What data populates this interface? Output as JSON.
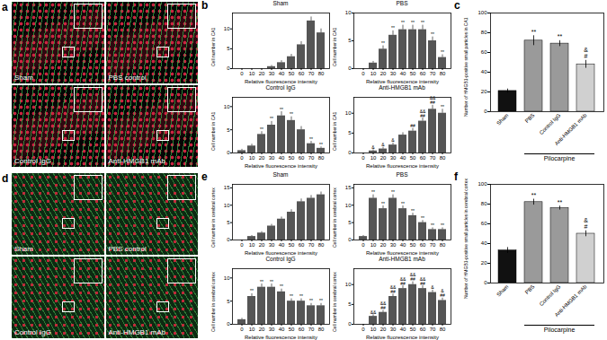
{
  "images": [
    {
      "panel": "a",
      "tiles": [
        "Sham",
        "PBS control",
        "Control IgG",
        "Anti-HMGB1 mAb"
      ]
    },
    {
      "panel": "d",
      "tiles": [
        "Sham",
        "PBS control",
        "Control IgG",
        "Anti-HMGB1 mAb"
      ]
    }
  ],
  "chart_data": [
    {
      "panel": "b",
      "type": "bar",
      "title": "Sham",
      "categories": [
        0,
        10,
        20,
        30,
        40,
        50,
        60,
        70,
        80
      ],
      "values": [
        0,
        0,
        0,
        0.5,
        1.5,
        3,
        6,
        12,
        9
      ],
      "errors": [
        0,
        0,
        0,
        0.3,
        0.5,
        0.6,
        0.8,
        1,
        1
      ],
      "annotations": [
        "",
        "",
        "",
        "",
        "",
        "",
        "",
        "",
        ""
      ],
      "xlabel": "Relative fluorescence intensity",
      "ylabel": "Cell number in CA1",
      "ylim": [
        0,
        14
      ],
      "yticks": [
        0,
        5,
        10
      ],
      "color": "#555555"
    },
    {
      "panel": "b",
      "type": "bar",
      "title": "PBS",
      "categories": [
        0,
        10,
        20,
        30,
        40,
        50,
        60,
        70,
        80
      ],
      "values": [
        0,
        1,
        3.5,
        6,
        7,
        7,
        7,
        5,
        2
      ],
      "errors": [
        0,
        0.3,
        0.6,
        0.8,
        0.8,
        0.8,
        0.8,
        0.7,
        0.5
      ],
      "annotations": [
        "",
        "",
        "**",
        "**",
        "**",
        "**",
        "**",
        "**",
        "**"
      ],
      "xlabel": "Relative fluorescence intensity",
      "ylabel": "Cell number in CA1",
      "ylim": [
        0,
        10
      ],
      "yticks": [
        0,
        5,
        10
      ],
      "color": "#555555"
    },
    {
      "panel": "b",
      "type": "bar",
      "title": "Control IgG",
      "categories": [
        0,
        10,
        20,
        30,
        40,
        50,
        60,
        70,
        80
      ],
      "values": [
        0.5,
        1.5,
        4,
        6,
        8,
        7,
        5,
        2,
        1
      ],
      "errors": [
        0.3,
        0.4,
        0.6,
        0.8,
        0.9,
        0.8,
        0.7,
        0.5,
        0.3
      ],
      "annotations": [
        "",
        "",
        "**",
        "**",
        "**",
        "**",
        "",
        "**",
        "**"
      ],
      "xlabel": "Relative fluorescence intensity",
      "ylabel": "Cell number in CA1",
      "ylim": [
        0,
        12
      ],
      "yticks": [
        0,
        5,
        10
      ],
      "color": "#555555"
    },
    {
      "panel": "b",
      "type": "bar",
      "title": "Anti-HMGB1 mAb",
      "categories": [
        0,
        10,
        20,
        30,
        40,
        50,
        60,
        70,
        80
      ],
      "values": [
        0,
        0.5,
        1,
        2,
        4.5,
        5.5,
        8,
        11,
        10
      ],
      "errors": [
        0,
        0.3,
        0.4,
        0.5,
        0.6,
        0.7,
        0.8,
        1,
        1
      ],
      "annotations": [
        "",
        "&",
        "&",
        "&",
        "",
        "##",
        "&&\n##",
        "&&\n##",
        "**"
      ],
      "xlabel": "Relative fluorescence intensity",
      "ylabel": "Cell number in CA1",
      "ylim": [
        0,
        14
      ],
      "yticks": [
        0,
        5,
        10
      ],
      "color": "#555555"
    },
    {
      "panel": "c",
      "type": "bar",
      "categories": [
        "Sham",
        "PBS",
        "Control IgG",
        "Anti-HMGB1 mAb"
      ],
      "values": [
        21,
        72,
        69,
        48
      ],
      "errors": [
        2,
        5,
        3,
        4
      ],
      "annotations": [
        "",
        "**",
        "**",
        "&\n#"
      ],
      "colors": [
        "#111111",
        "#9a9a9a",
        "#9a9a9a",
        "#d0d0d0"
      ],
      "ylabel": "Number of HMGB1-positive small particles in CA1",
      "ylim": [
        0,
        100
      ],
      "yticks": [
        0,
        20,
        40,
        60,
        80,
        100
      ],
      "group": {
        "label": "Pilocarpine",
        "categories": [
          "PBS",
          "Control IgG",
          "Anti-HMGB1 mAb"
        ]
      }
    },
    {
      "panel": "e",
      "type": "bar",
      "title": "Sham",
      "categories": [
        0,
        10,
        20,
        30,
        40,
        50,
        60,
        70,
        80
      ],
      "values": [
        0,
        1,
        2,
        4,
        6,
        8,
        11,
        12,
        13
      ],
      "errors": [
        0,
        0.3,
        0.4,
        0.5,
        0.6,
        0.7,
        0.8,
        0.8,
        0.8
      ],
      "annotations": [
        "",
        "",
        "",
        "",
        "",
        "",
        "",
        "",
        ""
      ],
      "xlabel": "Relative fluorescence intensity",
      "ylabel": "Cell number in cerebral cortex",
      "ylim": [
        0,
        16
      ],
      "yticks": [
        0,
        5,
        10,
        15
      ],
      "color": "#555555"
    },
    {
      "panel": "e",
      "type": "bar",
      "title": "PBS",
      "categories": [
        0,
        10,
        20,
        30,
        40,
        50,
        60,
        70,
        80
      ],
      "values": [
        1,
        12,
        9,
        12,
        9,
        7,
        5,
        3,
        3
      ],
      "errors": [
        0.3,
        1,
        0.8,
        1,
        0.8,
        0.7,
        0.6,
        0.5,
        0.5
      ],
      "annotations": [
        "",
        "**",
        "**",
        "**",
        "**",
        "**",
        "**",
        "**",
        "**"
      ],
      "xlabel": "Relative fluorescence intensity",
      "ylabel": "Cell number in cerebral cortex",
      "ylim": [
        0,
        16
      ],
      "yticks": [
        0,
        5,
        10,
        15
      ],
      "color": "#555555"
    },
    {
      "panel": "e",
      "type": "bar",
      "title": "Control IgG",
      "categories": [
        0,
        10,
        20,
        30,
        40,
        50,
        60,
        70,
        80
      ],
      "values": [
        1,
        6,
        8,
        8,
        7,
        5,
        5,
        4,
        4
      ],
      "errors": [
        0.3,
        0.6,
        0.7,
        0.7,
        0.6,
        0.5,
        0.5,
        0.5,
        0.5
      ],
      "annotations": [
        "",
        "**",
        "**",
        "**",
        "**",
        "**",
        "**",
        "**",
        "**"
      ],
      "xlabel": "Relative fluorescence intensity",
      "ylabel": "Cell number in cerebral cortex",
      "ylim": [
        0,
        12
      ],
      "yticks": [
        0,
        5,
        10
      ],
      "color": "#555555"
    },
    {
      "panel": "e",
      "type": "bar",
      "title": "Anti-HMGB1 mAb",
      "categories": [
        0,
        10,
        20,
        30,
        40,
        50,
        60,
        70,
        80
      ],
      "values": [
        0,
        2,
        3,
        7,
        9,
        10,
        9,
        8,
        6
      ],
      "errors": [
        0,
        0.4,
        0.5,
        0.6,
        0.7,
        0.7,
        0.7,
        0.6,
        0.6
      ],
      "annotations": [
        "",
        "&&",
        "&&\n##",
        "&&\n##",
        "&&\n##",
        "&&\n##",
        "&&\n##",
        "&",
        "&\n##"
      ],
      "xlabel": "Relative fluorescence intensity",
      "ylabel": "Cell number in cerebral cortex",
      "ylim": [
        0,
        14
      ],
      "yticks": [
        0,
        5,
        10
      ],
      "color": "#555555"
    },
    {
      "panel": "f",
      "type": "bar",
      "categories": [
        "Sham",
        "PBS",
        "Control IgG",
        "Anti-HMGB1 mAb"
      ],
      "values": [
        33,
        82,
        76,
        50
      ],
      "errors": [
        3,
        3,
        2,
        3
      ],
      "annotations": [
        "",
        "**",
        "**",
        "&\n#"
      ],
      "colors": [
        "#111111",
        "#9a9a9a",
        "#9a9a9a",
        "#d0d0d0"
      ],
      "ylabel": "Number of HMGB1-positive small particles in cerebral cortex",
      "ylim": [
        0,
        100
      ],
      "yticks": [
        0,
        20,
        40,
        60,
        80,
        100
      ],
      "group": {
        "label": "Pilocarpine",
        "categories": [
          "PBS",
          "Control IgG",
          "Anti-HMGB1 mAb"
        ]
      }
    }
  ]
}
